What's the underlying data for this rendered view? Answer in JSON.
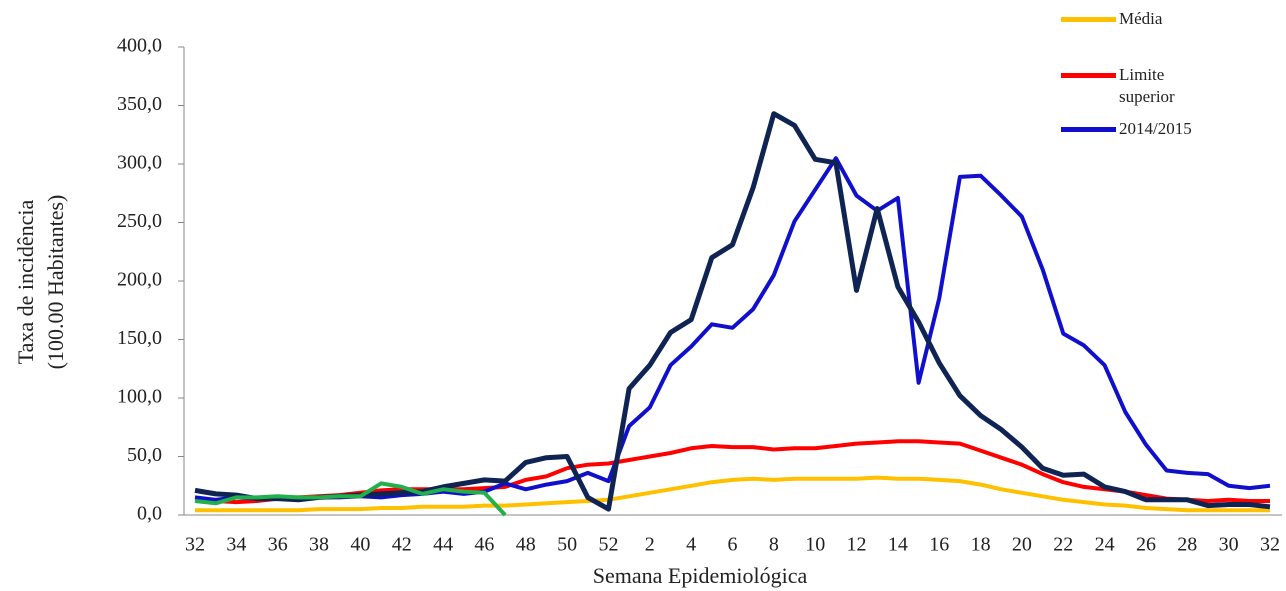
{
  "chart_data": {
    "type": "line",
    "ylabel": [
      "Taxa de incidência",
      "(100.00 Habitantes)"
    ],
    "xlabel": "Semana Epidemiológica",
    "categories": [
      "32",
      null,
      "34",
      null,
      "36",
      null,
      "38",
      null,
      "40",
      null,
      "42",
      null,
      "44",
      null,
      "46",
      null,
      "48",
      null,
      "50",
      null,
      "52",
      null,
      "2",
      null,
      "4",
      null,
      "6",
      null,
      "8",
      null,
      "10",
      null,
      "12",
      null,
      "14",
      null,
      "16",
      null,
      "18",
      null,
      "20",
      null,
      "22",
      null,
      "24",
      null,
      "26",
      null,
      "28",
      null,
      "30",
      null,
      "32"
    ],
    "ylim": [
      0,
      400
    ],
    "yticks": [
      {
        "value": 0,
        "label": "0,0"
      },
      {
        "value": 50,
        "label": "50,0"
      },
      {
        "value": 100,
        "label": "100,0"
      },
      {
        "value": 150,
        "label": "150,0"
      },
      {
        "value": 200,
        "label": "200,0"
      },
      {
        "value": 250,
        "label": "250,0"
      },
      {
        "value": 300,
        "label": "300,0"
      },
      {
        "value": 350,
        "label": "350,0"
      },
      {
        "value": 400,
        "label": "400,0"
      }
    ],
    "series": [
      {
        "name": "Média",
        "color": "#ffc000",
        "values": [
          4,
          4,
          4,
          4,
          4,
          4,
          5,
          5,
          5,
          6,
          6,
          7,
          7,
          7,
          8,
          8,
          9,
          10,
          11,
          12,
          13,
          16,
          19,
          22,
          25,
          28,
          30,
          31,
          30,
          31,
          31,
          31,
          31,
          32,
          31,
          31,
          30,
          29,
          26,
          22,
          19,
          16,
          13,
          11,
          9,
          8,
          6,
          5,
          4,
          4,
          4,
          4,
          4
        ]
      },
      {
        "name": "Limite superior",
        "color": "#ff0000",
        "values": [
          12,
          12,
          11,
          12,
          14,
          15,
          16,
          17,
          19,
          21,
          22,
          22,
          22,
          22,
          23,
          24,
          30,
          33,
          40,
          43,
          44,
          47,
          50,
          53,
          57,
          59,
          58,
          58,
          56,
          57,
          57,
          59,
          61,
          62,
          63,
          63,
          62,
          61,
          55,
          49,
          43,
          35,
          28,
          24,
          22,
          20,
          17,
          14,
          13,
          12,
          13,
          12,
          12
        ]
      },
      {
        "name": "2014/2015",
        "color": "#1010cc",
        "values": [
          15,
          13,
          15,
          14,
          15,
          14,
          15,
          15,
          16,
          15,
          17,
          18,
          20,
          18,
          20,
          27,
          22,
          26,
          29,
          36,
          29,
          76,
          92,
          128,
          144,
          163,
          160,
          176,
          205,
          251,
          278,
          305,
          273,
          260,
          271,
          113,
          185,
          289,
          290,
          273,
          255,
          210,
          155,
          145,
          128,
          88,
          60,
          38,
          36,
          35,
          25,
          23,
          25
        ]
      },
      {
        "color": "#0f2452",
        "values": [
          21,
          18,
          17,
          14,
          14,
          13,
          15,
          16,
          17,
          18,
          19,
          20,
          24,
          27,
          30,
          29,
          45,
          49,
          50,
          15,
          5,
          108,
          128,
          156,
          167,
          220,
          231,
          280,
          343,
          333,
          304,
          301,
          192,
          262,
          195,
          165,
          130,
          102,
          85,
          73,
          58,
          40,
          34,
          35,
          24,
          20,
          13,
          13,
          13,
          8,
          9,
          9,
          7
        ]
      },
      {
        "color": "#22b04a",
        "values": [
          12,
          10,
          15,
          15,
          16,
          15,
          15,
          16,
          16,
          27,
          24,
          18,
          22,
          20,
          19,
          0,
          null,
          null,
          null,
          null,
          null,
          null,
          null,
          null,
          null,
          null,
          null,
          null,
          null,
          null,
          null,
          null,
          null,
          null,
          null,
          null,
          null,
          null,
          null,
          null,
          null,
          null,
          null,
          null,
          null,
          null,
          null,
          null,
          null,
          null,
          null,
          null,
          null
        ]
      }
    ],
    "legend": "top-right"
  }
}
